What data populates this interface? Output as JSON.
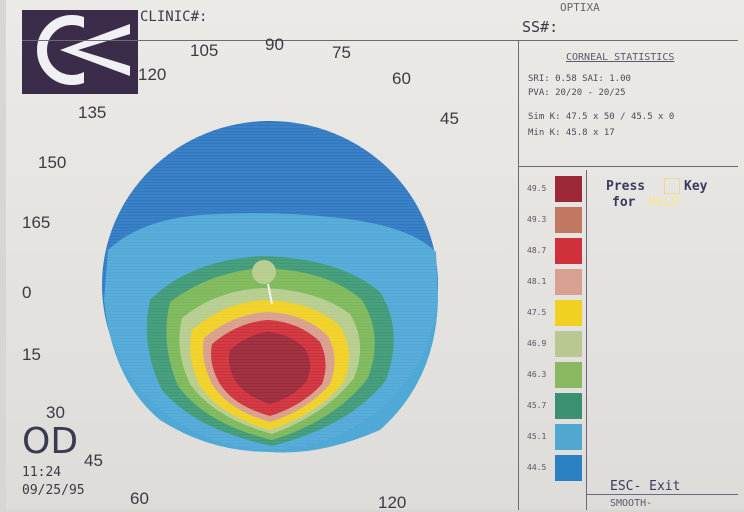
{
  "header": {
    "clinic_label": "CLINIC#:",
    "ss_label": "SS#:",
    "top_right_partial": "OPTIXA"
  },
  "axis_labels": [
    "105",
    "90",
    "75",
    "60",
    "45",
    "120",
    "135",
    "150",
    "165",
    "0",
    "15",
    "30",
    "45",
    "60",
    "120"
  ],
  "eye": "OD",
  "time": "11:24",
  "date": "09/25/95",
  "corneal_statistics": {
    "title": "CORNEAL STATISTICS",
    "line1": "SRI: 0.58   SAI: 1.00",
    "line2": "PVA: 20/20 - 20/25",
    "line3": "Sim K:  47.5 x 50 / 45.5 x 0",
    "line4": "Min K:  45.8 x 17"
  },
  "legend": {
    "values": [
      "49.5",
      "49.3",
      "48.7",
      "48.1",
      "47.5",
      "46.9",
      "46.3",
      "45.7",
      "45.1",
      "44.5"
    ],
    "colors": [
      "#9c2838",
      "#c07860",
      "#d0303a",
      "#d8a090",
      "#f0d020",
      "#b8c890",
      "#88b860",
      "#3a9070",
      "#50a8d0",
      "#2a80c0"
    ]
  },
  "help": {
    "press": "Press",
    "key": "Key",
    "for": "for",
    "help_word": "HELP",
    "esc_exit": "ESC- Exit",
    "smooth_partial": "SMOOTH-"
  },
  "map_colors": {
    "outer_blue": "#2f78c2",
    "light_blue": "#4fa8d6",
    "teal": "#3e9a76",
    "green": "#7cb85a",
    "light_green": "#b6cc8c",
    "yellow": "#f0d024",
    "salmon": "#d89e8c",
    "red": "#d0303a",
    "dark_red": "#9c2838"
  }
}
